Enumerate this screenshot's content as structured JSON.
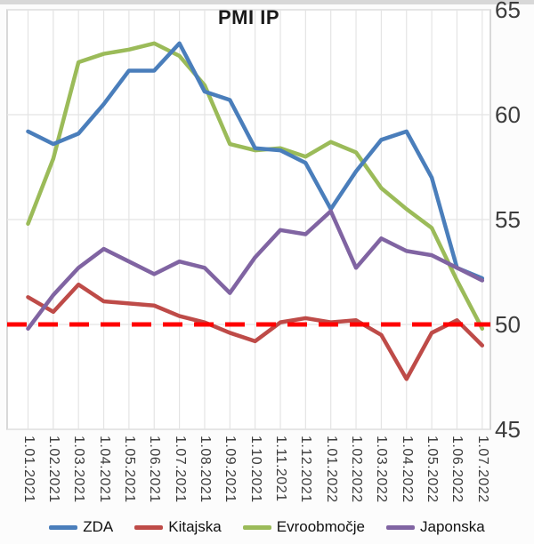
{
  "chart_data": {
    "type": "line",
    "title": "PMI IP",
    "categories": [
      "1.01.2021",
      "1.02.2021",
      "1.03.2021",
      "1.04.2021",
      "1.05.2021",
      "1.06.2021",
      "1.07.2021",
      "1.08.2021",
      "1.09.2021",
      "1.10.2021",
      "1.11.2021",
      "1.12.2021",
      "1.01.2022",
      "1.02.2022",
      "1.03.2022",
      "1.04.2022",
      "1.05.2022",
      "1.06.2022",
      "1.07.2022"
    ],
    "series": [
      {
        "name": "ZDA",
        "color": "#4A7EBB",
        "values": [
          59.2,
          58.6,
          59.1,
          60.5,
          62.1,
          62.1,
          63.4,
          61.1,
          60.7,
          58.4,
          58.3,
          57.7,
          55.5,
          57.3,
          58.8,
          59.2,
          57.0,
          52.7,
          52.2
        ]
      },
      {
        "name": "Kitajska",
        "color": "#BE4B48",
        "values": [
          51.3,
          50.6,
          51.9,
          51.1,
          51.0,
          50.9,
          50.4,
          50.1,
          49.6,
          49.2,
          50.1,
          50.3,
          50.1,
          50.2,
          49.5,
          47.4,
          49.6,
          50.2,
          49.0
        ]
      },
      {
        "name": "Evroobmočje",
        "color": "#9BBB59",
        "values": [
          54.8,
          57.9,
          62.5,
          62.9,
          63.1,
          63.4,
          62.8,
          61.4,
          58.6,
          58.3,
          58.4,
          58.0,
          58.7,
          58.2,
          56.5,
          55.5,
          54.6,
          52.1,
          49.8
        ]
      },
      {
        "name": "Japonska",
        "color": "#8064A2",
        "values": [
          49.8,
          51.4,
          52.7,
          53.6,
          53.0,
          52.4,
          53.0,
          52.7,
          51.5,
          53.2,
          54.5,
          54.3,
          55.4,
          52.7,
          54.1,
          53.5,
          53.3,
          52.7,
          52.1
        ]
      }
    ],
    "reference_line": {
      "value": 50,
      "color": "#FF0000",
      "style": "dashed"
    },
    "ylim": [
      45,
      65
    ],
    "yticks": [
      45,
      50,
      55,
      60,
      65
    ],
    "ytick_labels": [
      "45",
      "50",
      "55",
      "60",
      "65"
    ],
    "y_axis_side": "right",
    "x_label_rotation": 90,
    "grid": true,
    "legend_position": "bottom",
    "legend": [
      "ZDA",
      "Kitajska",
      "Evroobmočje",
      "Japonska"
    ]
  }
}
